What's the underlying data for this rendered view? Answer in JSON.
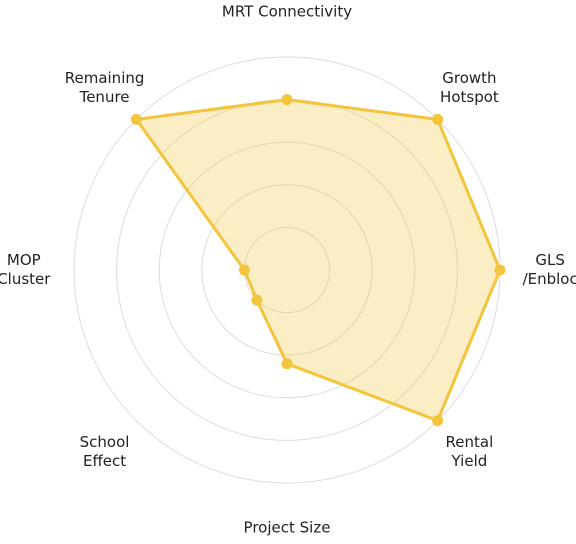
{
  "chart_data": {
    "type": "radar",
    "categories": [
      "MRT Connectivity",
      "Growth\nHotspot",
      "GLS\n/Enbloc",
      "Rental\nYield",
      "Project Size",
      "School\nEffect",
      "MOP\nCluster",
      "Remaining\nTenure"
    ],
    "values": [
      4.0,
      5.0,
      5.0,
      5.0,
      2.2,
      1.0,
      1.0,
      5.0
    ],
    "color": "#f2c53d",
    "rlim": [
      0,
      5
    ],
    "rticks": [
      1,
      2,
      3,
      4,
      5
    ],
    "grid": true
  }
}
